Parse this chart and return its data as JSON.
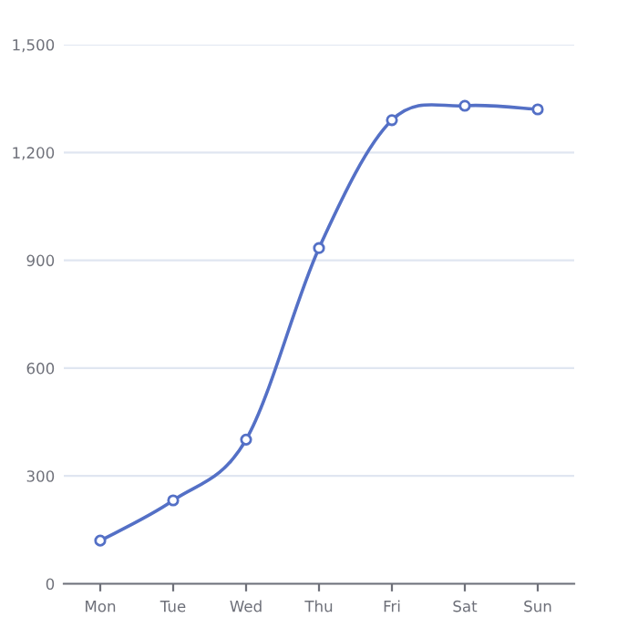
{
  "chart_data": {
    "type": "line",
    "categories": [
      "Mon",
      "Tue",
      "Wed",
      "Thu",
      "Fri",
      "Sat",
      "Sun"
    ],
    "series": [
      {
        "color": "#5470c6",
        "values": [
          120,
          232,
          401,
          934,
          1290,
          1330,
          1320
        ]
      }
    ],
    "ylim": [
      0,
      1500
    ],
    "yticks": [
      0,
      300,
      600,
      900,
      {
        "value": 1200,
        "label": "1,200"
      },
      {
        "value": 1500,
        "label": "1,500"
      }
    ],
    "grid": "y",
    "marker": "circle",
    "line_style": "solid",
    "legend": false
  }
}
